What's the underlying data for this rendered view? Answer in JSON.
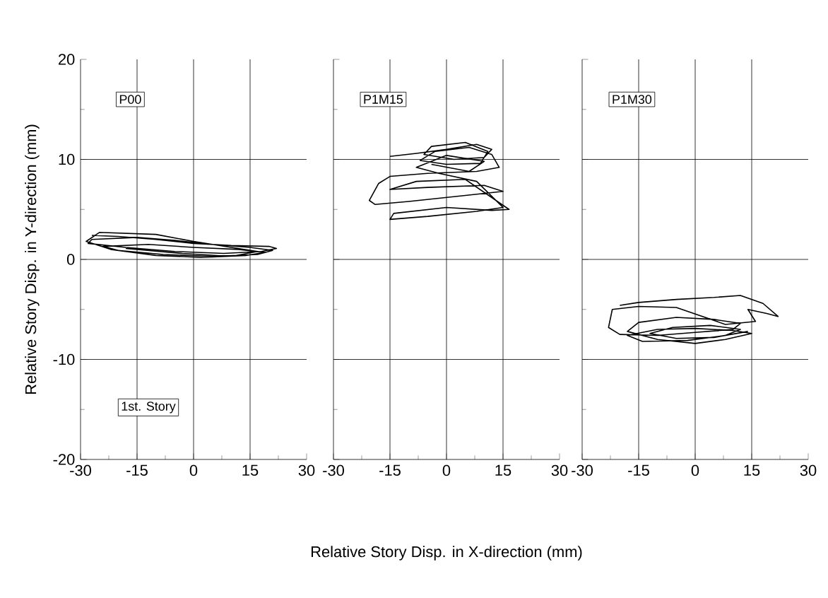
{
  "chart_data": [
    {
      "type": "line",
      "ylabel": "Relative Story Disp. in Y-direction (mm)",
      "xlim": [
        -30,
        30
      ],
      "ylim": [
        -20,
        20
      ],
      "xticks": [
        -30,
        -15,
        0,
        15,
        30
      ],
      "yticks": [
        -20,
        -10,
        0,
        10,
        20
      ],
      "grid": true,
      "annotations": [
        "P00",
        "1st. Story"
      ],
      "series": [
        {
          "color": "#000000",
          "x": [
            -27,
            -20,
            -10,
            0,
            10,
            20,
            22,
            18,
            8,
            -5,
            -18,
            -28,
            -27,
            -15,
            -5,
            5,
            15,
            21,
            17,
            5,
            -8,
            -20,
            -24,
            -12,
            0,
            12,
            19,
            14,
            2,
            -10,
            -22,
            -28.5,
            -25,
            -10,
            0,
            10,
            17,
            10,
            -3,
            -18
          ],
          "values": [
            2.4,
            2.3,
            2.0,
            1.6,
            1.4,
            1.3,
            1.1,
            0.8,
            0.6,
            0.8,
            1.2,
            1.6,
            2.0,
            2.2,
            1.9,
            1.5,
            1.2,
            0.9,
            0.5,
            0.3,
            0.5,
            0.9,
            1.3,
            1.5,
            1.2,
            1.0,
            0.7,
            0.4,
            0.2,
            0.4,
            1.0,
            1.8,
            2.7,
            2.5,
            1.8,
            1.2,
            0.8,
            0.3,
            0.6,
            1.1
          ]
        }
      ]
    },
    {
      "type": "line",
      "xlabel": "Relative Story Disp. in X-direction (mm)",
      "xlim": [
        -30,
        30
      ],
      "ylim": [
        -20,
        20
      ],
      "xticks": [
        -30,
        -15,
        0,
        15,
        30
      ],
      "yticks": [
        -20,
        -10,
        0,
        10,
        20
      ],
      "grid": true,
      "tick_labels": "x",
      "annotations": [
        "P1M15"
      ],
      "series": [
        {
          "color": "#000000",
          "x": [
            -15,
            -8,
            0,
            8,
            12,
            10,
            2,
            -6,
            -4,
            5,
            11,
            9,
            0,
            -7,
            -3,
            6,
            12,
            14,
            8,
            -5,
            -15,
            -18,
            -20.5,
            -19,
            -10,
            5,
            15,
            10,
            -5,
            -15,
            -8,
            5,
            16.6,
            12,
            0,
            -14,
            -15,
            -5,
            8,
            15,
            8,
            -2,
            -8,
            0,
            10,
            6,
            -4
          ],
          "values": [
            10.3,
            10.6,
            11.0,
            11.5,
            11.0,
            10.2,
            10.0,
            10.5,
            11.3,
            11.7,
            10.8,
            9.6,
            9.5,
            9.9,
            10.8,
            11.2,
            10.5,
            9.2,
            8.8,
            8.6,
            8.3,
            7.6,
            5.9,
            5.5,
            5.8,
            6.4,
            6.8,
            7.4,
            7.2,
            7.0,
            7.8,
            8.0,
            5.0,
            4.9,
            5.2,
            4.6,
            4.0,
            4.3,
            4.8,
            5.2,
            7.8,
            8.6,
            9.2,
            10.4,
            9.8,
            8.8,
            9.5
          ]
        }
      ]
    },
    {
      "type": "line",
      "xlim": [
        -30,
        30
      ],
      "ylim": [
        -20,
        20
      ],
      "xticks": [
        -30,
        -15,
        0,
        15,
        30
      ],
      "yticks": [
        -20,
        -10,
        0,
        10,
        20
      ],
      "grid": true,
      "tick_labels": "x",
      "annotations": [
        "P1M30"
      ],
      "series": [
        {
          "color": "#000000",
          "x": [
            -20,
            -15,
            -5,
            5,
            12,
            18,
            22,
            19,
            14,
            16,
            8,
            -5,
            -15,
            -22,
            -23,
            -20,
            -10,
            0,
            10,
            12,
            5,
            -5,
            -15,
            -18,
            -10,
            0,
            8,
            15,
            10,
            0,
            -10,
            -18,
            -14,
            -2,
            8,
            12,
            4,
            -6,
            -12,
            -5,
            5,
            14
          ],
          "values": [
            -4.6,
            -4.3,
            -4.0,
            -3.8,
            -3.6,
            -4.4,
            -5.7,
            -5.4,
            -5.0,
            -6.2,
            -6.5,
            -4.8,
            -4.7,
            -5.0,
            -6.8,
            -7.5,
            -7.6,
            -7.3,
            -7.0,
            -6.4,
            -6.0,
            -5.8,
            -6.3,
            -7.2,
            -8.0,
            -8.4,
            -8.0,
            -7.4,
            -7.1,
            -6.9,
            -7.0,
            -7.6,
            -8.2,
            -8.1,
            -7.6,
            -7.0,
            -6.6,
            -6.8,
            -7.4,
            -7.9,
            -7.8,
            -7.2
          ]
        }
      ]
    }
  ]
}
